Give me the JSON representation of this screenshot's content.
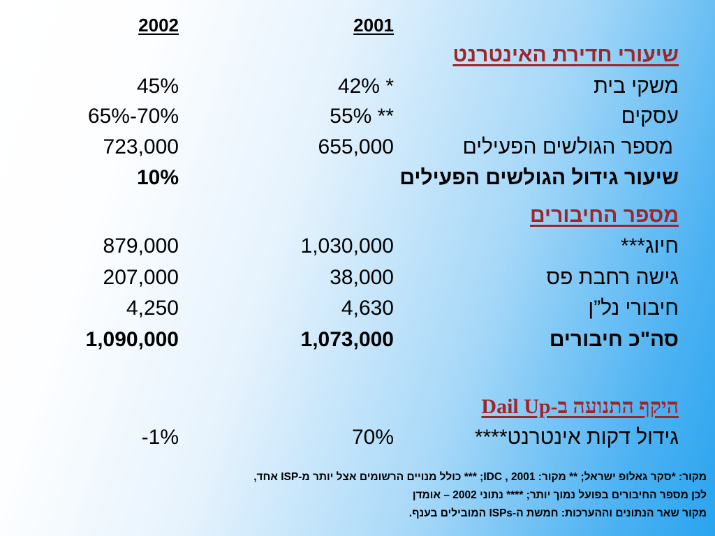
{
  "header": {
    "year_2002": "2002",
    "year_2001": "2001"
  },
  "penetration": {
    "title": "שיעורי חדירת האינטרנט",
    "rows": [
      {
        "label": "משקי בית",
        "v2001": "42% *",
        "v2002": "45%"
      },
      {
        "label": "עסקים",
        "v2001": "55% **",
        "v2002": "65%-70%"
      },
      {
        "label": "מספר הגולשים הפעילים",
        "v2001": "655,000",
        "v2002": "723,000"
      }
    ],
    "growth": {
      "label": "שיעור גידול הגולשים הפעילים",
      "v2002": "10%"
    }
  },
  "connections": {
    "title": "מספר החיבורים",
    "rows": [
      {
        "label": "חיוג***",
        "v2001": "1,030,000",
        "v2002": "879,000"
      },
      {
        "label": "גישה רחבת פס",
        "v2001": "38,000",
        "v2002": "207,000"
      },
      {
        "label": "חיבורי נל”ן",
        "v2001": "4,630",
        "v2002": "4,250"
      }
    ],
    "total": {
      "label": "סה\"כ חיבורים",
      "v2001": "1,073,000",
      "v2002": "1,090,000"
    }
  },
  "dialup": {
    "title": "היקף התנועה ב-Dail Up",
    "rows": [
      {
        "label": "גידול דקות אינטרנט****",
        "v2001": "70%",
        "v2002": "-1%"
      }
    ]
  },
  "footnotes": [
    "מקור: *סקר גאלופ ישראל;  ** מקור: IDC , 2001; *** כולל מנויים הרשומים אצל יותר מ-ISP אחד,",
    "לכן מספר החיבורים בפועל נמוך יותר; **** נתוני 2002 – אומדן",
    "מקור שאר הנתונים וההערכות: חמשת ה-ISPs המובילים בענף."
  ]
}
